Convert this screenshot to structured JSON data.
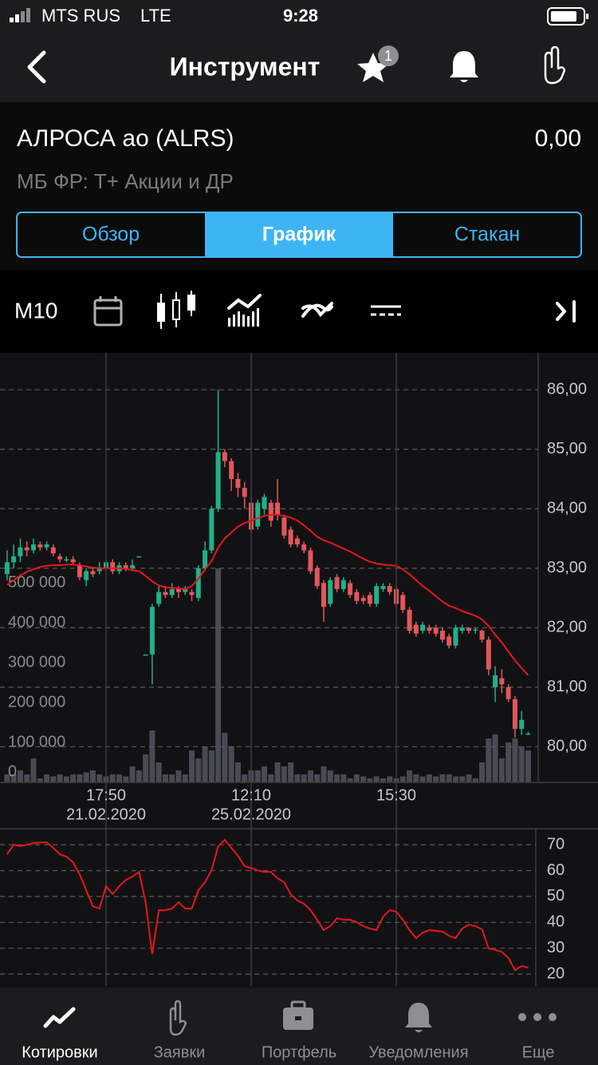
{
  "status_bar": {
    "carrier": "MTS RUS",
    "network": "LTE",
    "time": "9:28"
  },
  "nav": {
    "title": "Инструмент",
    "favorites_badge": "1"
  },
  "instrument": {
    "name": "АЛРОСА ао (ALRS)",
    "price": "0,00",
    "market": "МБ ФР: Т+ Акции и ДР"
  },
  "tabs": {
    "items": [
      "Обзор",
      "График",
      "Стакан"
    ],
    "active": 1
  },
  "toolbar": {
    "period": "М10"
  },
  "chart_data": [
    {
      "type": "candlestick",
      "categories": [
        null,
        null,
        null,
        null,
        null,
        null,
        null,
        null,
        null,
        null,
        null,
        null,
        null,
        null,
        null,
        "17:50",
        null,
        null,
        null,
        null,
        null,
        null,
        null,
        null,
        null,
        null,
        null,
        null,
        null,
        null,
        null,
        null,
        null,
        null,
        null,
        null,
        null,
        "12:10",
        null,
        null,
        null,
        null,
        null,
        null,
        null,
        null,
        null,
        null,
        null,
        null,
        null,
        null,
        null,
        null,
        null,
        null,
        null,
        null,
        null,
        "15:30",
        null,
        null,
        null,
        null,
        null,
        null,
        null,
        null,
        null,
        null,
        null,
        null,
        null,
        null,
        null,
        null,
        null,
        null,
        null,
        null
      ],
      "dates": [
        null,
        null,
        null,
        null,
        null,
        null,
        null,
        null,
        null,
        null,
        null,
        null,
        null,
        null,
        null,
        "21.02.2020",
        null,
        null,
        null,
        null,
        null,
        null,
        null,
        null,
        null,
        null,
        null,
        null,
        null,
        null,
        null,
        null,
        null,
        null,
        null,
        null,
        null,
        "25.02.2020",
        null,
        null,
        null,
        null,
        null,
        null,
        null,
        null,
        null,
        null,
        null,
        null,
        null,
        null,
        null,
        null,
        null,
        null,
        null,
        null,
        null,
        null,
        null,
        null,
        null,
        null,
        null,
        null,
        null,
        null,
        null,
        null,
        null,
        null,
        null,
        null,
        null,
        null,
        null,
        null,
        null,
        null
      ],
      "open": [
        82.9,
        83.1,
        83.2,
        83.35,
        83.3,
        83.4,
        83.35,
        83.35,
        83.2,
        83.15,
        83.15,
        83.05,
        82.8,
        82.95,
        82.95,
        83.0,
        83.1,
        82.95,
        83.05,
        83.0,
        83.2,
        81.55,
        81.55,
        82.4,
        82.6,
        82.55,
        82.65,
        82.6,
        82.6,
        82.5,
        83.0,
        83.3,
        84.0,
        84.95,
        84.8,
        84.5,
        84.35,
        84.1,
        83.7,
        84.0,
        84.1,
        84.1,
        83.85,
        83.65,
        83.5,
        83.4,
        83.3,
        83.0,
        82.75,
        82.4,
        82.85,
        82.65,
        82.75,
        82.6,
        82.5,
        82.55,
        82.4,
        82.65,
        82.7,
        82.65,
        82.55,
        82.3,
        82.05,
        81.95,
        82.0,
        82.0,
        81.95,
        81.85,
        81.7,
        81.95,
        82.0,
        81.95,
        81.95,
        81.8,
        81.0,
        81.15,
        81.0,
        80.8,
        80.3,
        80.2
      ],
      "high": [
        83.3,
        83.4,
        83.5,
        83.45,
        83.5,
        83.45,
        83.45,
        83.4,
        83.25,
        83.2,
        83.2,
        83.1,
        83.0,
        83.0,
        83.1,
        83.15,
        83.15,
        83.1,
        83.1,
        83.15,
        83.2,
        81.55,
        82.4,
        82.7,
        82.7,
        82.75,
        82.7,
        82.7,
        82.65,
        83.05,
        83.45,
        84.05,
        86.0,
        85.0,
        84.85,
        84.6,
        84.45,
        84.2,
        84.15,
        84.25,
        84.15,
        84.5,
        83.9,
        83.7,
        83.55,
        83.45,
        83.35,
        83.05,
        82.8,
        82.85,
        82.9,
        82.85,
        82.8,
        82.65,
        82.55,
        82.6,
        82.75,
        82.75,
        82.75,
        82.7,
        82.6,
        82.35,
        82.1,
        82.1,
        82.05,
        82.05,
        82.0,
        81.9,
        82.05,
        82.05,
        82.0,
        82.0,
        81.97,
        81.85,
        81.35,
        81.3,
        81.05,
        80.85,
        80.6,
        80.25
      ],
      "low": [
        82.8,
        83.0,
        83.1,
        83.2,
        83.25,
        83.3,
        83.3,
        83.2,
        83.1,
        83.1,
        83.05,
        82.8,
        82.7,
        82.85,
        82.9,
        82.95,
        82.9,
        82.9,
        82.95,
        82.95,
        83.2,
        81.55,
        81.05,
        82.35,
        82.5,
        82.5,
        82.5,
        82.55,
        82.45,
        82.45,
        82.95,
        83.25,
        83.95,
        84.7,
        84.3,
        84.2,
        84.0,
        83.6,
        83.65,
        83.9,
        83.7,
        83.8,
        83.5,
        83.35,
        83.35,
        83.25,
        82.9,
        82.65,
        82.1,
        82.35,
        82.6,
        82.6,
        82.5,
        82.4,
        82.4,
        82.35,
        82.35,
        82.6,
        82.55,
        82.35,
        82.25,
        81.9,
        81.85,
        81.9,
        81.9,
        81.85,
        81.75,
        81.65,
        81.65,
        81.9,
        81.9,
        81.9,
        81.75,
        81.2,
        80.75,
        80.9,
        80.75,
        80.15,
        80.2,
        80.2
      ],
      "close": [
        83.1,
        83.2,
        83.35,
        83.3,
        83.4,
        83.35,
        83.4,
        83.25,
        83.15,
        83.15,
        83.1,
        82.85,
        82.95,
        82.9,
        83.0,
        83.1,
        82.95,
        83.05,
        83.0,
        83.05,
        83.2,
        81.55,
        82.35,
        82.6,
        82.55,
        82.65,
        82.6,
        82.65,
        82.55,
        83.0,
        83.3,
        84.0,
        84.95,
        84.8,
        84.5,
        84.35,
        84.2,
        83.65,
        84.1,
        84.2,
        83.8,
        83.9,
        83.55,
        83.4,
        83.4,
        83.3,
        82.95,
        82.7,
        82.35,
        82.8,
        82.65,
        82.8,
        82.55,
        82.45,
        82.45,
        82.4,
        82.7,
        82.7,
        82.6,
        82.4,
        82.3,
        81.95,
        81.9,
        82.05,
        81.95,
        81.9,
        81.8,
        81.7,
        82.0,
        82.0,
        81.95,
        81.97,
        81.8,
        81.3,
        81.2,
        81.05,
        80.8,
        80.3,
        80.45,
        80.22
      ],
      "up_color": "#21b08a",
      "down_color": "#e2575c",
      "volume": {
        "axis": "y2",
        "color": "#4a4a54",
        "values": [
          20000,
          20000,
          30000,
          20000,
          60000,
          10000,
          20000,
          15000,
          20000,
          15000,
          20000,
          20000,
          25000,
          30000,
          20000,
          15000,
          20000,
          20000,
          15000,
          40000,
          30000,
          70000,
          130000,
          50000,
          20000,
          20000,
          30000,
          20000,
          80000,
          60000,
          90000,
          80000,
          536000,
          124000,
          90000,
          50000,
          20000,
          30000,
          30000,
          40000,
          20000,
          50000,
          40000,
          50000,
          20000,
          20000,
          30000,
          20000,
          40000,
          30000,
          20000,
          20000,
          10000,
          20000,
          15000,
          10000,
          15000,
          10000,
          15000,
          10000,
          15000,
          30000,
          20000,
          15000,
          20000,
          15000,
          20000,
          20000,
          15000,
          15000,
          20000,
          10000,
          50000,
          110000,
          120000,
          60000,
          100000,
          110000,
          90000,
          80000
        ]
      },
      "moving_average": {
        "color": "#e8161c",
        "values": [
          82.72,
          82.8,
          82.88,
          82.94,
          82.98,
          83.02,
          83.04,
          83.05,
          83.05,
          83.06,
          83.06,
          83.05,
          83.03,
          83.01,
          83.0,
          83.0,
          83.0,
          83.0,
          82.99,
          82.97,
          82.95,
          82.87,
          82.78,
          82.71,
          82.68,
          82.67,
          82.66,
          82.65,
          82.7,
          82.82,
          82.98,
          83.12,
          83.35,
          83.5,
          83.6,
          83.7,
          83.76,
          83.8,
          83.84,
          83.88,
          83.9,
          83.9,
          83.88,
          83.85,
          83.8,
          83.72,
          83.63,
          83.53,
          83.47,
          83.43,
          83.38,
          83.33,
          83.28,
          83.22,
          83.16,
          83.11,
          83.08,
          83.06,
          83.05,
          83.04,
          82.98,
          82.9,
          82.8,
          82.7,
          82.62,
          82.53,
          82.44,
          82.37,
          82.33,
          82.28,
          82.24,
          82.2,
          82.14,
          82.03,
          81.88,
          81.75,
          81.6,
          81.45,
          81.32,
          81.2
        ]
      },
      "ylim": [
        79.4,
        86.62
      ],
      "yticks": [
        {
          "value": 80,
          "label": "80,00"
        },
        {
          "value": 81,
          "label": "81,00"
        },
        {
          "value": 82,
          "label": "82,00"
        },
        {
          "value": 83,
          "label": "83,00"
        },
        {
          "value": 84,
          "label": "84,00"
        },
        {
          "value": 85,
          "label": "85,00"
        },
        {
          "value": 86,
          "label": "86,00"
        }
      ],
      "y2lim": [
        0,
        1076000
      ],
      "y2ticks": [
        0,
        {
          "value": 100000,
          "label": "100 000"
        },
        {
          "value": 200000,
          "label": "200 000"
        },
        {
          "value": 300000,
          "label": "300 000"
        },
        {
          "value": 400000,
          "label": "400 000"
        },
        {
          "value": 500000,
          "label": "500 000"
        }
      ],
      "grid": true
    },
    {
      "type": "line",
      "color": "#e8161c",
      "values": [
        66.3,
        70,
        69.4,
        70,
        70.6,
        70.9,
        70.9,
        68.8,
        66.3,
        65.4,
        63.2,
        58.6,
        52.4,
        46.2,
        45.3,
        54,
        50.9,
        54,
        56.4,
        57.7,
        59.5,
        47.8,
        27.7,
        44.7,
        44.7,
        45.3,
        47.8,
        45.3,
        45.3,
        52.4,
        55.5,
        60.1,
        69.4,
        71.9,
        68.8,
        65.7,
        61.7,
        61,
        60.1,
        59.5,
        59.5,
        57,
        55.5,
        50.9,
        48.4,
        47.2,
        44.7,
        41,
        37,
        38.5,
        41.6,
        41,
        41,
        40.1,
        38.5,
        37.6,
        37,
        42.2,
        44.7,
        44.1,
        41,
        37,
        33.9,
        36,
        37,
        36.7,
        36.4,
        34.8,
        33.9,
        37.6,
        39.1,
        38.5,
        37.3,
        29.9,
        29.3,
        28.6,
        26.2,
        21.5,
        23.1,
        22.5
      ],
      "ylim": [
        15.4,
        76.2
      ],
      "yticks": [
        20,
        30,
        40,
        50,
        60,
        70
      ],
      "grid": true
    }
  ],
  "tab_bar": {
    "items": [
      "Котировки",
      "Заявки",
      "Портфель",
      "Уведомления",
      "Еще"
    ],
    "active": 0
  }
}
